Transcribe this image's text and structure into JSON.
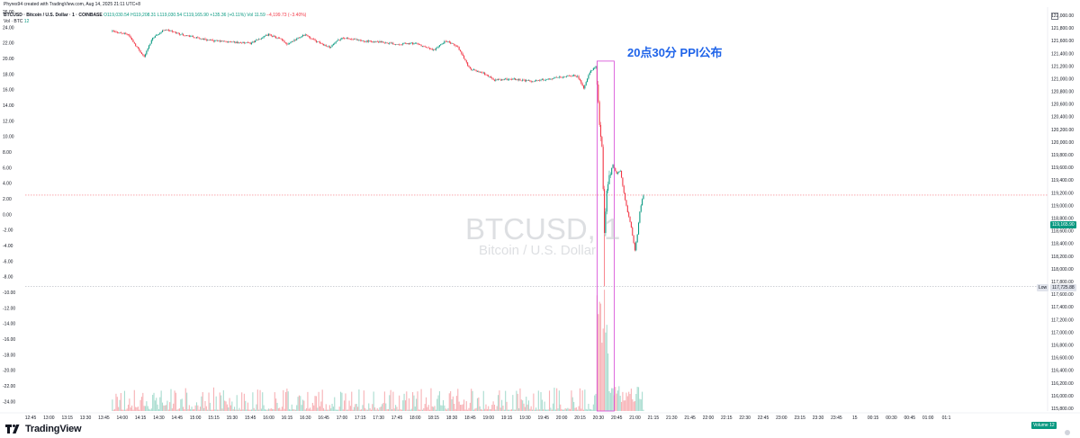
{
  "header": {
    "credit": "Phyres94 created with TradingView.com, Aug 14, 2025 21:11 UTC+8",
    "symbol": "BTCUSD · Bitcoin / U.S. Dollar · 1 · COINBASE",
    "ohlc_open": "O119,030.54",
    "ohlc_high": "H119,208.31",
    "ohlc_low": "L119,030.54",
    "ohlc_close": "C119,165.90",
    "change": "+135.36 (+0.11%)",
    "volume_label": "Vol 11.59",
    "volume_change": "−4,199.73 (−3.40%)",
    "volume_series": "Vol · BTC",
    "volume_series_value": "12"
  },
  "watermark": {
    "title": "BTCUSD, 1",
    "subtitle": "Bitcoin / U.S. Dollar"
  },
  "annotation": {
    "text": "20点30分 PPI公布"
  },
  "price_tags": {
    "last": "119,165.90",
    "low_label": "Low",
    "low_value": "117,725.88",
    "volume_label": "Volume",
    "volume_value": "12"
  },
  "logo": {
    "text": "TradingView"
  },
  "colors": {
    "up": "#089981",
    "down": "#f23645",
    "volume_up": "#a8dccf",
    "volume_down": "#f7b1b5",
    "annotation_box": "#d645d6",
    "annotation_text": "#1e63e9"
  },
  "chart_data": {
    "type": "candlestick",
    "symbol": "BTCUSD",
    "interval": "1",
    "right_axis": {
      "ticks": [
        "122,000.00",
        "121,800.00",
        "121,600.00",
        "121,400.00",
        "121,200.00",
        "121,000.00",
        "120,800.00",
        "120,600.00",
        "120,400.00",
        "120,200.00",
        "120,000.00",
        "119,800.00",
        "119,600.00",
        "119,400.00",
        "119,200.00",
        "119,000.00",
        "118,800.00",
        "118,600.00",
        "118,400.00",
        "118,200.00",
        "118,000.00",
        "117,800.00",
        "117,600.00",
        "117,400.00",
        "117,200.00",
        "117,000.00",
        "116,800.00",
        "116,600.00",
        "116,400.00",
        "116,200.00",
        "116,000.00",
        "115,800.00"
      ],
      "ylim": [
        115760,
        122130
      ]
    },
    "left_axis": {
      "ticks": [
        "26.00",
        "24.00",
        "22.00",
        "20.00",
        "18.00",
        "16.00",
        "14.00",
        "12.00",
        "10.00",
        "8.00",
        "6.00",
        "4.00",
        "2.00",
        "0.00",
        "-2.00",
        "-4.00",
        "-6.00",
        "-8.00",
        "-10.00",
        "-12.00",
        "-14.00",
        "-16.00",
        "-18.00",
        "-20.00",
        "-22.00",
        "-24.00"
      ],
      "ylim": [
        -25.2,
        26.6
      ]
    },
    "x_axis": {
      "ticks": [
        "12:45",
        "13:00",
        "13:15",
        "13:30",
        "13:45",
        "14:00",
        "14:15",
        "14:30",
        "14:45",
        "15:00",
        "15:15",
        "15:30",
        "15:45",
        "16:00",
        "16:15",
        "16:30",
        "16:45",
        "17:00",
        "17:15",
        "17:30",
        "17:45",
        "18:00",
        "18:15",
        "18:30",
        "18:45",
        "19:00",
        "19:15",
        "19:30",
        "19:45",
        "20:00",
        "20:15",
        "20:30",
        "20:45",
        "21:00",
        "21:15",
        "21:30",
        "21:45",
        "22:00",
        "22:15",
        "22:30",
        "22:45",
        "23:00",
        "23:15",
        "23:30",
        "23:45",
        "15",
        "00:15",
        "00:30",
        "00:45",
        "01:00",
        "01:1"
      ]
    },
    "price_path": [
      [
        "13:52",
        121750
      ],
      [
        "14:05",
        121700
      ],
      [
        "14:12",
        121500
      ],
      [
        "14:18",
        121350
      ],
      [
        "14:25",
        121650
      ],
      [
        "14:35",
        121780
      ],
      [
        "14:45",
        121720
      ],
      [
        "15:00",
        121650
      ],
      [
        "15:15",
        121600
      ],
      [
        "15:30",
        121580
      ],
      [
        "15:45",
        121560
      ],
      [
        "16:00",
        121700
      ],
      [
        "16:10",
        121620
      ],
      [
        "16:15",
        121550
      ],
      [
        "16:30",
        121700
      ],
      [
        "16:40",
        121580
      ],
      [
        "16:50",
        121500
      ],
      [
        "17:00",
        121650
      ],
      [
        "17:15",
        121600
      ],
      [
        "17:30",
        121580
      ],
      [
        "17:45",
        121550
      ],
      [
        "18:00",
        121560
      ],
      [
        "18:15",
        121450
      ],
      [
        "18:25",
        121600
      ],
      [
        "18:35",
        121500
      ],
      [
        "18:45",
        121150
      ],
      [
        "18:55",
        121100
      ],
      [
        "19:05",
        120980
      ],
      [
        "19:20",
        121000
      ],
      [
        "19:35",
        120960
      ],
      [
        "19:50",
        121000
      ],
      [
        "20:05",
        121050
      ],
      [
        "20:13",
        121050
      ],
      [
        "20:18",
        120850
      ],
      [
        "20:23",
        121100
      ],
      [
        "20:28",
        121200
      ],
      [
        "20:31",
        120300
      ],
      [
        "20:33",
        119900
      ],
      [
        "20:35",
        118550
      ],
      [
        "20:37",
        119250
      ],
      [
        "20:39",
        119450
      ],
      [
        "20:42",
        119650
      ],
      [
        "20:45",
        119500
      ],
      [
        "20:48",
        119550
      ],
      [
        "20:51",
        119200
      ],
      [
        "20:54",
        118900
      ],
      [
        "20:57",
        118650
      ],
      [
        "21:00",
        118300
      ],
      [
        "21:02",
        118550
      ],
      [
        "21:04",
        118900
      ],
      [
        "21:06",
        119100
      ],
      [
        "21:07",
        119166
      ]
    ],
    "last_price": 119165.9,
    "low_price": 117725.88,
    "annotation": {
      "text": "20点30分 PPI公布",
      "time_range": [
        "20:29",
        "20:34"
      ]
    },
    "volume_series": {
      "name": "Volume",
      "last_value": 12
    }
  }
}
